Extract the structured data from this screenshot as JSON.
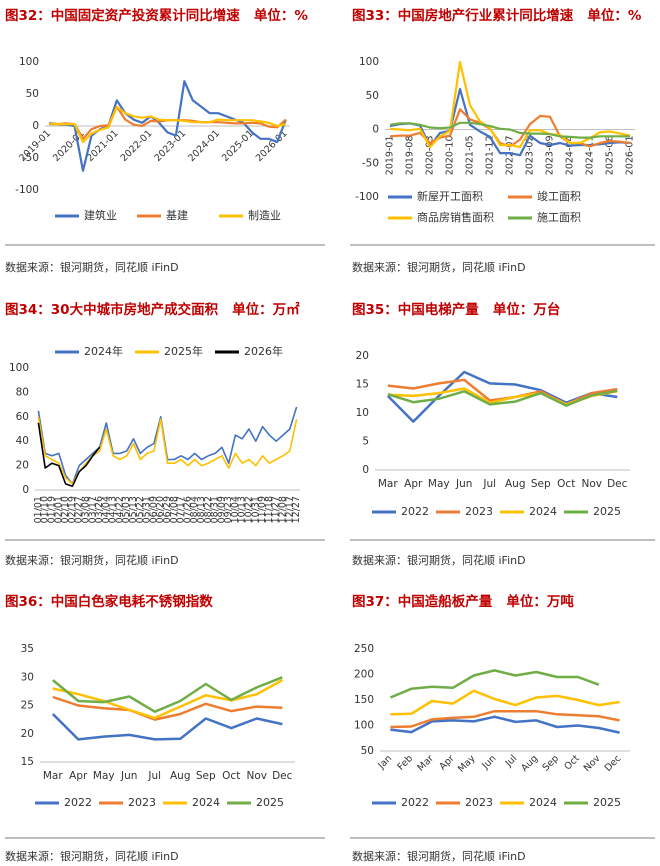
{
  "chart_data": [
    {
      "type": "line",
      "title": "图32：中国固定资产投资累计同比增速   单位：%",
      "source": "数据来源：银河期货，同花顺 iFinD",
      "categories": [
        "2019-01",
        null,
        null,
        null,
        "2020-01",
        null,
        null,
        null,
        "2021-01",
        null,
        null,
        null,
        "2022-01",
        null,
        null,
        null,
        "2023-01",
        null,
        null,
        null,
        "2024-01",
        null,
        null,
        null,
        "2025-01",
        null,
        null,
        null,
        "2026-01"
      ],
      "series": [
        {
          "name": "建筑业",
          "color": "#4472c4",
          "values": [
            5,
            3,
            2,
            0,
            -70,
            -15,
            -5,
            0,
            40,
            20,
            10,
            5,
            15,
            5,
            -10,
            -15,
            70,
            40,
            30,
            20,
            20,
            15,
            10,
            5,
            -10,
            -20,
            -20,
            -25,
            10
          ]
        },
        {
          "name": "基建",
          "color": "#ed7d31",
          "values": [
            3,
            3,
            4,
            3,
            -20,
            -5,
            0,
            1,
            30,
            10,
            2,
            0,
            8,
            7,
            9,
            9,
            9,
            8,
            6,
            6,
            6,
            5,
            4,
            4,
            5,
            4,
            -1,
            -2,
            10
          ]
        },
        {
          "name": "制造业",
          "color": "#ffc000",
          "values": [
            4,
            3,
            3,
            3,
            -25,
            -12,
            -6,
            -2,
            30,
            20,
            15,
            13,
            15,
            10,
            9,
            9,
            8,
            6,
            6,
            6,
            10,
            9,
            9,
            9,
            9,
            7,
            5,
            0,
            3
          ]
        }
      ],
      "ylim": [
        -100,
        100
      ],
      "yticks": [
        -100,
        -50,
        0,
        50,
        100
      ],
      "legend": "bottom"
    },
    {
      "type": "line",
      "title": "图33：中国房地产行业累计同比增速   单位：%",
      "source": "数据来源：银河期货，同花顺 iFinD",
      "categories": [
        "2019-01",
        null,
        "2019-08",
        null,
        "2020-03",
        null,
        "2020-10",
        null,
        "2021-05",
        null,
        "2021-12",
        null,
        "2022-07",
        null,
        "2023-02",
        null,
        "2023-09",
        null,
        "2024-04",
        null,
        "2024-11",
        null,
        "2025-06",
        null,
        "2026-01"
      ],
      "series": [
        {
          "name": "新屋开工面积",
          "color": "#4472c4",
          "values": [
            5,
            8,
            9,
            6,
            -25,
            -5,
            -2,
            60,
            7,
            -3,
            -11,
            -35,
            -35,
            -38,
            -9,
            -20,
            -23,
            -20,
            -24,
            -23,
            -23,
            -22,
            -20,
            -19,
            -20
          ]
        },
        {
          "name": "竣工面积",
          "color": "#ed7d31",
          "values": [
            -10,
            -9,
            -9,
            -5,
            -20,
            -12,
            -9,
            30,
            15,
            10,
            1,
            -20,
            -25,
            -15,
            8,
            20,
            19,
            -10,
            -20,
            -20,
            -25,
            -20,
            -17,
            -18,
            -20
          ]
        },
        {
          "name": "商品房销售面积",
          "color": "#ffc000",
          "values": [
            1,
            0,
            -1,
            1,
            -26,
            -10,
            -2,
            100,
            36,
            12,
            2,
            -23,
            -23,
            -26,
            -1,
            -1,
            -7,
            -8,
            -20,
            -20,
            -13,
            -4,
            -3,
            -6,
            -9
          ]
        },
        {
          "name": "施工面积",
          "color": "#70ad47",
          "values": [
            7,
            9,
            9,
            7,
            3,
            2,
            3,
            10,
            10,
            8,
            5,
            1,
            0,
            -5,
            -6,
            -6,
            -7,
            -10,
            -11,
            -12,
            -12,
            -10,
            -10,
            -10,
            -10
          ]
        }
      ],
      "ylim": [
        -100,
        100
      ],
      "yticks": [
        -100,
        -50,
        0,
        50,
        100
      ],
      "legend": "bottom"
    },
    {
      "type": "line",
      "title": "图34：30大中城市房地产成交面积   单位：万㎡",
      "source": "数据来源：银河期货，同花顺 iFinD",
      "categories": [
        "01/01",
        "01/10",
        "01/19",
        "02/01",
        "02/10",
        "02/19",
        "02/27",
        "03/08",
        "03/17",
        "03/26",
        "04/04",
        "04/13",
        "04/22",
        "05/03",
        "05/13",
        "05/22",
        "05/31",
        "06/09",
        "06/20",
        "06/29",
        "07/08",
        "07/17",
        "07/26",
        "08/04",
        "08/13",
        "08/22",
        "08/31",
        "09/09",
        "09/23",
        "10/04",
        "10/13",
        "10/22",
        "10/31",
        "11/09",
        "11/18",
        "11/27",
        "12/08",
        "12/17",
        "12/27"
      ],
      "series": [
        {
          "name": "2024年",
          "color": "#4472c4",
          "values": [
            65,
            30,
            28,
            30,
            12,
            5,
            20,
            25,
            30,
            35,
            55,
            30,
            30,
            32,
            42,
            30,
            35,
            38,
            60,
            25,
            25,
            28,
            25,
            30,
            25,
            28,
            30,
            35,
            22,
            45,
            42,
            50,
            40,
            52,
            45,
            40,
            45,
            50,
            68
          ]
        },
        {
          "name": "2025年",
          "color": "#ffc000",
          "values": [
            60,
            28,
            25,
            22,
            10,
            5,
            15,
            22,
            28,
            32,
            50,
            28,
            25,
            28,
            38,
            25,
            30,
            32,
            58,
            22,
            22,
            25,
            20,
            25,
            20,
            22,
            25,
            28,
            18,
            30,
            22,
            25,
            20,
            28,
            22,
            25,
            28,
            32,
            58
          ]
        },
        {
          "name": "2026年",
          "color": "#000000",
          "values": [
            55,
            18,
            22,
            20,
            5,
            3,
            15,
            20,
            28,
            35,
            null,
            null,
            null,
            null,
            null,
            null,
            null,
            null,
            null,
            null,
            null,
            null,
            null,
            null,
            null,
            null,
            null,
            null,
            null,
            null,
            null,
            null,
            null,
            null,
            null,
            null,
            null,
            null,
            null
          ]
        }
      ],
      "ylim": [
        0,
        100
      ],
      "yticks": [
        0,
        20,
        40,
        60,
        80,
        100
      ],
      "legend": "top"
    },
    {
      "type": "line",
      "title": "图35：中国电梯产量   单位：万台",
      "source": "数据来源：银河期货，同花顺 iFinD",
      "categories": [
        "Mar",
        "Apr",
        "May",
        "Jun",
        "Jul",
        "Aug",
        "Sep",
        "Oct",
        "Nov",
        "Dec"
      ],
      "series": [
        {
          "name": "2022",
          "color": "#4472c4",
          "values": [
            13,
            8.5,
            13,
            17.2,
            15.2,
            15,
            14,
            11.8,
            13.5,
            12.8
          ]
        },
        {
          "name": "2023",
          "color": "#ed7d31",
          "values": [
            14.8,
            14.3,
            15.2,
            15.8,
            12.2,
            12.8,
            13.8,
            11.5,
            13.5,
            14.2
          ]
        },
        {
          "name": "2024",
          "color": "#ffc000",
          "values": [
            13.2,
            13,
            13.5,
            14.3,
            11.8,
            12.8,
            13.5,
            11.5,
            13,
            13.8
          ]
        },
        {
          "name": "2025",
          "color": "#70ad47",
          "values": [
            13.3,
            11.9,
            12.5,
            13.8,
            11.5,
            12,
            13.5,
            11.3,
            13.1,
            13.9
          ]
        }
      ],
      "ylim": [
        0,
        20
      ],
      "yticks": [
        0,
        5,
        10,
        15,
        20
      ],
      "legend": "bottom"
    },
    {
      "type": "line",
      "title": "图36：中国白色家电耗不锈钢指数",
      "source": "数据来源：银河期货，同花顺 iFinD",
      "categories": [
        "Mar",
        "Apr",
        "May",
        "Jun",
        "Jul",
        "Aug",
        "Sep",
        "Oct",
        "Nov",
        "Dec"
      ],
      "series": [
        {
          "name": "2022",
          "color": "#4472c4",
          "values": [
            23.5,
            19,
            19.5,
            19.8,
            19,
            19.1,
            22.7,
            21,
            22.7,
            21.7
          ]
        },
        {
          "name": "2023",
          "color": "#ed7d31",
          "values": [
            26.5,
            25,
            24.5,
            24.2,
            22.5,
            23.5,
            25.3,
            24,
            24.8,
            24.6
          ]
        },
        {
          "name": "2024",
          "color": "#ffc000",
          "values": [
            28,
            27,
            25.8,
            24.2,
            22.8,
            24.8,
            26.8,
            25.9,
            27,
            29.5
          ]
        },
        {
          "name": "2025",
          "color": "#70ad47",
          "values": [
            29.5,
            25.8,
            25.6,
            26.6,
            23.9,
            25.8,
            28.8,
            26,
            28.2,
            30
          ]
        }
      ],
      "ylim": [
        15,
        35
      ],
      "yticks": [
        15,
        20,
        25,
        30,
        35
      ],
      "legend": "bottom"
    },
    {
      "type": "line",
      "title": "图37：中国造船板产量   单位：万吨",
      "source": "数据来源：银河期货，同花顺 iFinD",
      "categories": [
        "Jan",
        "Feb",
        "Mar",
        "Apr",
        "May",
        "Jun",
        "Jul",
        "Aug",
        "Sep",
        "Oct",
        "Nov",
        "Dec"
      ],
      "series": [
        {
          "name": "2022",
          "color": "#4472c4",
          "values": [
            92,
            87,
            108,
            110,
            108,
            117,
            107,
            110,
            97,
            100,
            95,
            86
          ]
        },
        {
          "name": "2023",
          "color": "#ed7d31",
          "values": [
            97,
            98,
            112,
            115,
            117,
            128,
            128,
            128,
            122,
            120,
            118,
            110
          ]
        },
        {
          "name": "2024",
          "color": "#ffc000",
          "values": [
            122,
            123,
            148,
            143,
            168,
            152,
            140,
            155,
            158,
            150,
            140,
            146
          ]
        },
        {
          "name": "2025",
          "color": "#70ad47",
          "values": [
            155,
            172,
            176,
            174,
            198,
            208,
            198,
            205,
            195,
            195,
            180,
            null
          ]
        }
      ],
      "ylim": [
        50,
        250
      ],
      "yticks": [
        50,
        100,
        150,
        200,
        250
      ],
      "legend": "bottom"
    }
  ]
}
